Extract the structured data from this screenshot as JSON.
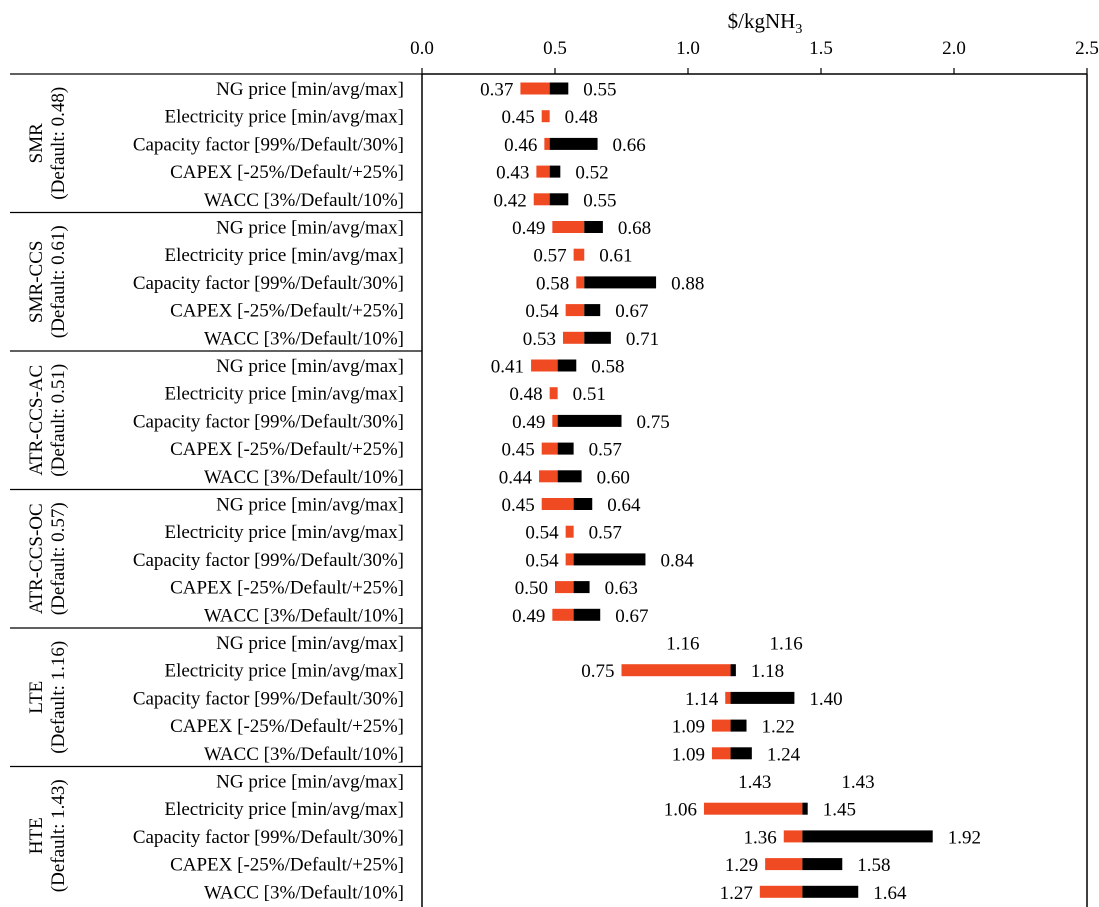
{
  "chart_data": {
    "type": "bar",
    "subtype": "tornado",
    "title": "",
    "xlabel": "$/kgNH",
    "xlabel_subscript": "3",
    "x_axis_position": "top",
    "xlim": [
      0,
      2.5
    ],
    "xticks": [
      "0.0",
      "0.5",
      "1.0",
      "1.5",
      "2.0",
      "2.5"
    ],
    "grid": false,
    "legend": "none",
    "colors": {
      "low_side": "#F04A23",
      "high_side": "#000000",
      "axis": "#000000"
    },
    "parameters": [
      "NG price [min/avg/max]",
      "Electricity price [min/avg/max]",
      "Capacity factor [99%/Default/30%]",
      "CAPEX [-25%/Default/+25%]",
      "WACC [3%/Default/10%]"
    ],
    "groups": [
      {
        "name": "SMR",
        "default_label": "(Default: 0.48)",
        "default": 0.48,
        "rows": [
          {
            "low": 0.37,
            "high": 0.55,
            "low_label": "0.37",
            "high_label": "0.55"
          },
          {
            "low": 0.45,
            "high": 0.48,
            "low_label": "0.45",
            "high_label": "0.48"
          },
          {
            "low": 0.46,
            "high": 0.66,
            "low_label": "0.46",
            "high_label": "0.66"
          },
          {
            "low": 0.43,
            "high": 0.52,
            "low_label": "0.43",
            "high_label": "0.52"
          },
          {
            "low": 0.42,
            "high": 0.55,
            "low_label": "0.42",
            "high_label": "0.55"
          }
        ]
      },
      {
        "name": "SMR-CCS",
        "default_label": "(Default: 0.61)",
        "default": 0.61,
        "rows": [
          {
            "low": 0.49,
            "high": 0.68,
            "low_label": "0.49",
            "high_label": "0.68"
          },
          {
            "low": 0.57,
            "high": 0.61,
            "low_label": "0.57",
            "high_label": "0.61"
          },
          {
            "low": 0.58,
            "high": 0.88,
            "low_label": "0.58",
            "high_label": "0.88"
          },
          {
            "low": 0.54,
            "high": 0.67,
            "low_label": "0.54",
            "high_label": "0.67"
          },
          {
            "low": 0.53,
            "high": 0.71,
            "low_label": "0.53",
            "high_label": "0.71"
          }
        ]
      },
      {
        "name": "ATR-CCS-AC",
        "default_label": "(Default: 0.51)",
        "default": 0.51,
        "rows": [
          {
            "low": 0.41,
            "high": 0.58,
            "low_label": "0.41",
            "high_label": "0.58"
          },
          {
            "low": 0.48,
            "high": 0.51,
            "low_label": "0.48",
            "high_label": "0.51"
          },
          {
            "low": 0.49,
            "high": 0.75,
            "low_label": "0.49",
            "high_label": "0.75"
          },
          {
            "low": 0.45,
            "high": 0.57,
            "low_label": "0.45",
            "high_label": "0.57"
          },
          {
            "low": 0.44,
            "high": 0.6,
            "low_label": "0.44",
            "high_label": "0.60"
          }
        ]
      },
      {
        "name": "ATR-CCS-OC",
        "default_label": "(Default: 0.57)",
        "default": 0.57,
        "rows": [
          {
            "low": 0.45,
            "high": 0.64,
            "low_label": "0.45",
            "high_label": "0.64"
          },
          {
            "low": 0.54,
            "high": 0.57,
            "low_label": "0.54",
            "high_label": "0.57"
          },
          {
            "low": 0.54,
            "high": 0.84,
            "low_label": "0.54",
            "high_label": "0.84"
          },
          {
            "low": 0.5,
            "high": 0.63,
            "low_label": "0.50",
            "high_label": "0.63"
          },
          {
            "low": 0.49,
            "high": 0.67,
            "low_label": "0.49",
            "high_label": "0.67"
          }
        ]
      },
      {
        "name": "LTE",
        "default_label": "(Default: 1.16)",
        "default": 1.16,
        "rows": [
          {
            "low": 1.16,
            "high": 1.16,
            "low_label": "1.16",
            "high_label": "1.16"
          },
          {
            "low": 0.75,
            "high": 1.18,
            "low_label": "0.75",
            "high_label": "1.18"
          },
          {
            "low": 1.14,
            "high": 1.4,
            "low_label": "1.14",
            "high_label": "1.40"
          },
          {
            "low": 1.09,
            "high": 1.22,
            "low_label": "1.09",
            "high_label": "1.22"
          },
          {
            "low": 1.09,
            "high": 1.24,
            "low_label": "1.09",
            "high_label": "1.24"
          }
        ]
      },
      {
        "name": "HTE",
        "default_label": "(Default: 1.43)",
        "default": 1.43,
        "rows": [
          {
            "low": 1.43,
            "high": 1.43,
            "low_label": "1.43",
            "high_label": "1.43"
          },
          {
            "low": 1.06,
            "high": 1.45,
            "low_label": "1.06",
            "high_label": "1.45"
          },
          {
            "low": 1.36,
            "high": 1.92,
            "low_label": "1.36",
            "high_label": "1.92"
          },
          {
            "low": 1.29,
            "high": 1.58,
            "low_label": "1.29",
            "high_label": "1.58"
          },
          {
            "low": 1.27,
            "high": 1.64,
            "low_label": "1.27",
            "high_label": "1.64"
          }
        ]
      }
    ]
  }
}
